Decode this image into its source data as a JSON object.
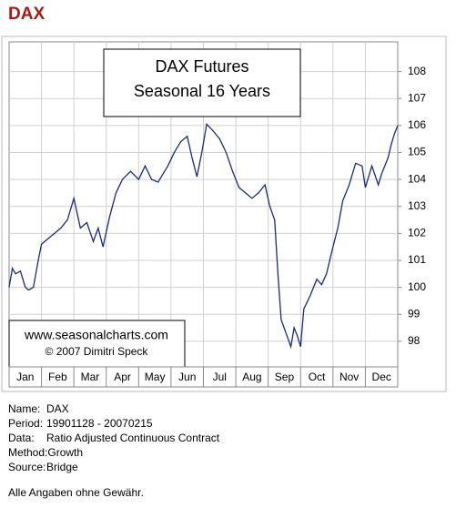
{
  "header": {
    "title": "DAX"
  },
  "chart_data": {
    "type": "line",
    "title": "DAX Futures",
    "subtitle": "Seasonal 16 Years",
    "annotations": [
      "www.seasonalcharts.com",
      "© 2007  Dimitri Speck"
    ],
    "xlim": [
      0,
      12
    ],
    "xticks": [
      {
        "value": 0.5,
        "label": "Jan"
      },
      {
        "value": 1.5,
        "label": "Feb"
      },
      {
        "value": 2.5,
        "label": "Mar"
      },
      {
        "value": 3.5,
        "label": "Apr"
      },
      {
        "value": 4.5,
        "label": "May"
      },
      {
        "value": 5.5,
        "label": "Jun"
      },
      {
        "value": 6.5,
        "label": "Jul"
      },
      {
        "value": 7.5,
        "label": "Aug"
      },
      {
        "value": 8.5,
        "label": "Sep"
      },
      {
        "value": 9.5,
        "label": "Oct"
      },
      {
        "value": 10.5,
        "label": "Nov"
      },
      {
        "value": 11.5,
        "label": "Dec"
      }
    ],
    "xgrid": [
      1,
      2,
      3,
      4,
      5,
      6,
      7,
      8,
      9,
      10,
      11
    ],
    "ylim": [
      97.05,
      109.1
    ],
    "yticks": [
      98,
      99,
      100,
      101,
      102,
      103,
      104,
      105,
      106,
      107,
      108
    ],
    "grid": true,
    "series": [
      {
        "color": "#1a2a80",
        "x": [
          0,
          0.1,
          0.2,
          0.35,
          0.5,
          0.6,
          0.75,
          0.9,
          1.0,
          1.2,
          1.4,
          1.6,
          1.8,
          2.0,
          2.2,
          2.4,
          2.6,
          2.75,
          2.9,
          3.1,
          3.3,
          3.5,
          3.75,
          4.0,
          4.2,
          4.4,
          4.6,
          4.9,
          5.1,
          5.3,
          5.5,
          5.65,
          5.8,
          5.95,
          6.1,
          6.3,
          6.5,
          6.7,
          6.9,
          7.1,
          7.3,
          7.5,
          7.7,
          7.9,
          8.05,
          8.2,
          8.3,
          8.4,
          8.55,
          8.7,
          8.8,
          8.9,
          9.0,
          9.1,
          9.3,
          9.5,
          9.65,
          9.8,
          10.0,
          10.15,
          10.3,
          10.5,
          10.7,
          10.9,
          11.0,
          11.2,
          11.4,
          11.5,
          11.7,
          11.8,
          11.9,
          12.0
        ],
        "values": [
          100.0,
          100.7,
          100.5,
          100.6,
          100.0,
          99.9,
          100.0,
          101.0,
          101.6,
          101.8,
          102.0,
          102.2,
          102.5,
          103.3,
          102.2,
          102.4,
          101.7,
          102.2,
          101.5,
          102.6,
          103.5,
          104.0,
          104.3,
          104.0,
          104.5,
          104.0,
          103.9,
          104.5,
          105.0,
          105.4,
          105.6,
          104.8,
          104.1,
          105.0,
          106.05,
          105.8,
          105.5,
          105.0,
          104.3,
          103.7,
          103.5,
          103.3,
          103.5,
          103.8,
          103.0,
          102.5,
          100.5,
          98.8,
          98.3,
          97.8,
          98.5,
          98.2,
          97.8,
          99.2,
          99.7,
          100.3,
          100.1,
          100.5,
          101.5,
          102.2,
          103.2,
          103.8,
          104.6,
          104.5,
          103.7,
          104.5,
          103.8,
          104.2,
          104.8,
          105.3,
          105.7,
          106.0
        ]
      }
    ]
  },
  "info": [
    {
      "label": "Name:",
      "value": "DAX"
    },
    {
      "label": "Period:",
      "value": "19901128 - 20070215"
    },
    {
      "label": "Data:",
      "value": "Ratio Adjusted Continuous Contract"
    },
    {
      "label": "Method:",
      "value": "Growth"
    },
    {
      "label": "Source:",
      "value": "Bridge"
    }
  ],
  "disclaimer": "Alle Angaben ohne Gewähr."
}
